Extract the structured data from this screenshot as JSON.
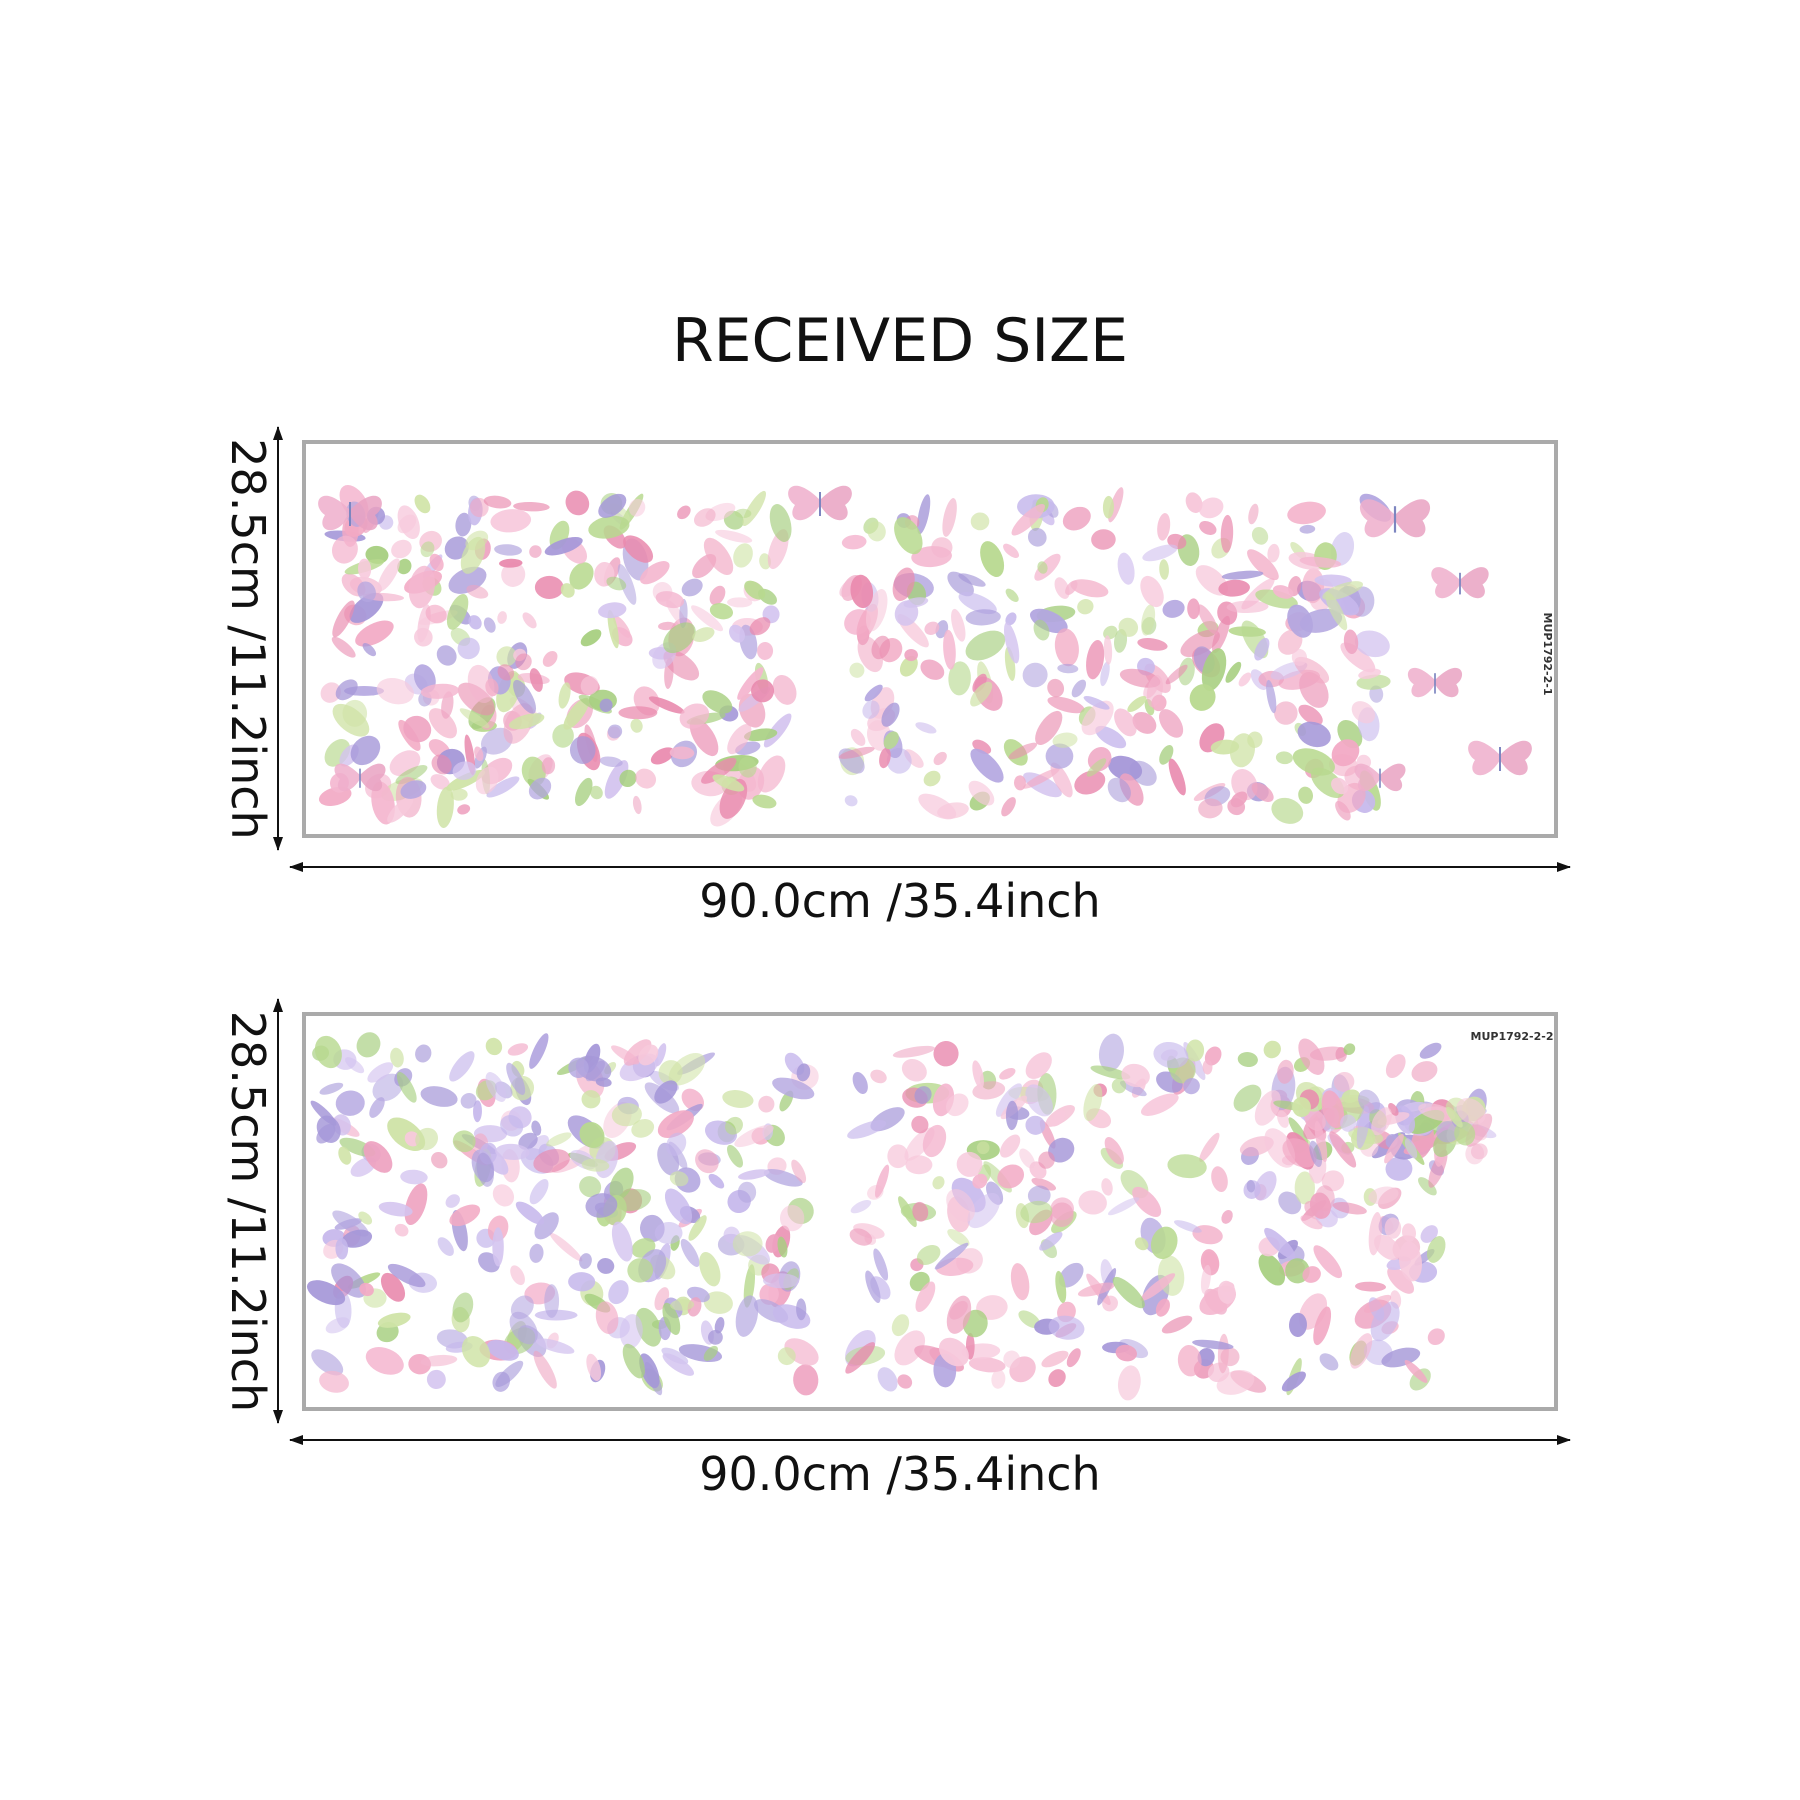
{
  "header": {
    "title": "RECEIVED SIZE"
  },
  "panels": [
    {
      "height_label": "28.5cm /11.2inch",
      "width_label": "90.0cm /35.4inch",
      "code": "MUP1792-2-1"
    },
    {
      "height_label": "28.5cm /11.2inch",
      "width_label": "90.0cm /35.4inch",
      "code": "MUP1792-2-2"
    }
  ]
}
